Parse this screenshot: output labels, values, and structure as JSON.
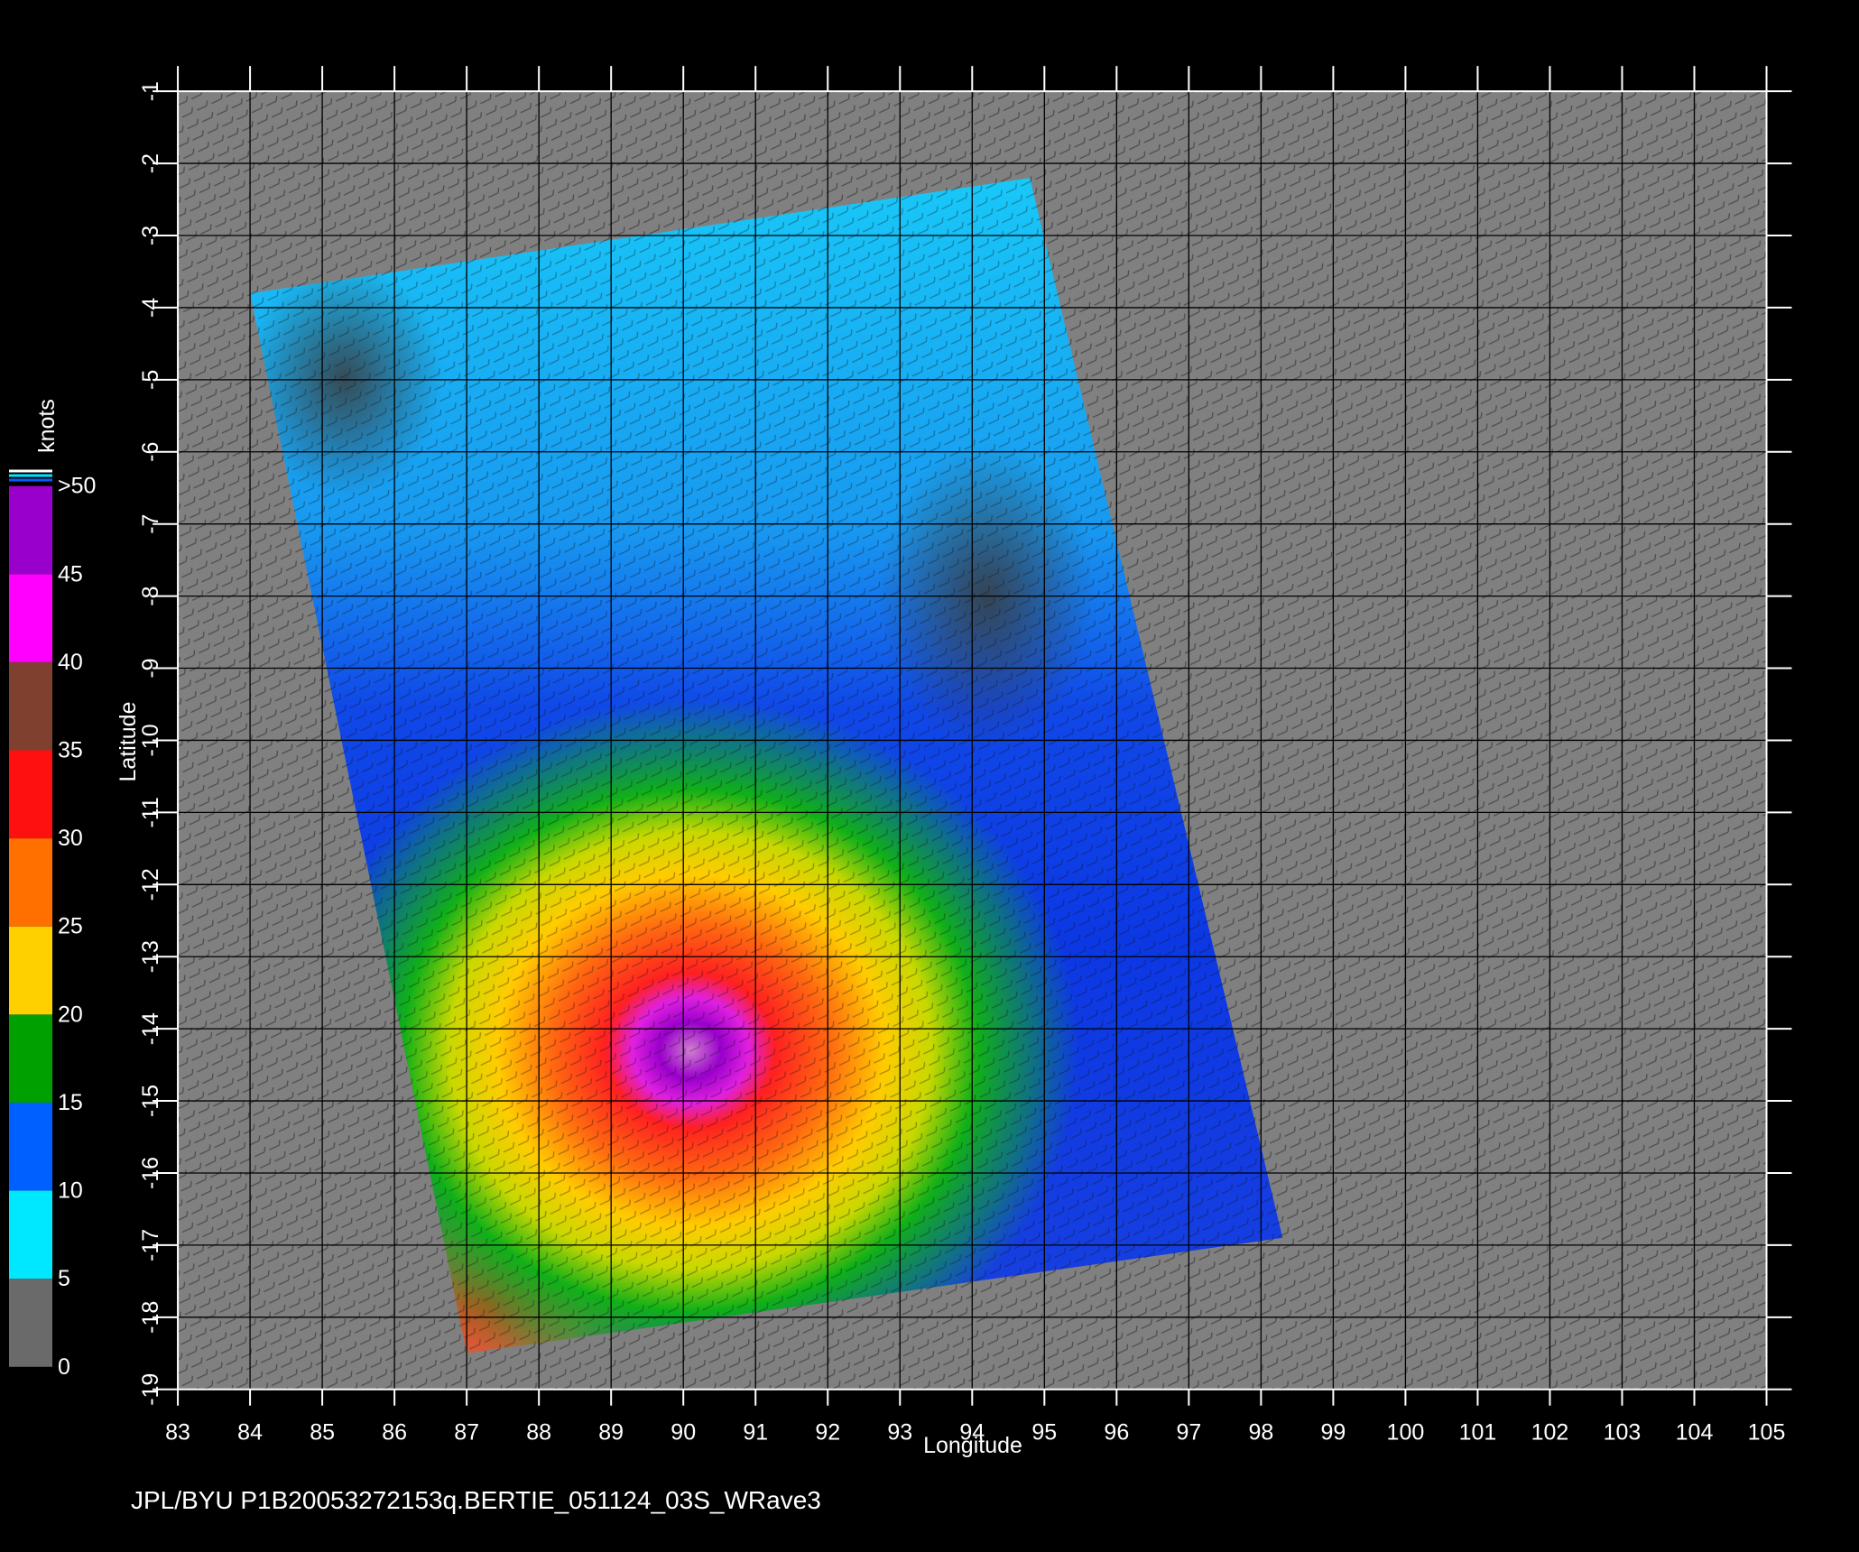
{
  "chart_data": {
    "type": "map",
    "xlabel": "Longitude",
    "ylabel": "Latitude",
    "xlim": [
      83,
      105
    ],
    "ylim": [
      -19,
      -1
    ],
    "xticks": [
      83,
      84,
      85,
      86,
      87,
      88,
      89,
      90,
      91,
      92,
      93,
      94,
      95,
      96,
      97,
      98,
      99,
      100,
      101,
      102,
      103,
      104,
      105
    ],
    "yticks": [
      -1,
      -2,
      -3,
      -4,
      -5,
      -6,
      -7,
      -8,
      -9,
      -10,
      -11,
      -12,
      -13,
      -14,
      -15,
      -16,
      -17,
      -18,
      -19
    ],
    "grid": true,
    "colorbar": {
      "label": "knots",
      "ticks": [
        0,
        5,
        10,
        15,
        20,
        25,
        30,
        35,
        40,
        45,
        {
          "value": 50,
          "label": ">50"
        }
      ],
      "colors": [
        "#6a6a6a",
        "#00e8ff",
        "#0060ff",
        "#00a000",
        "#ffd000",
        "#ff7000",
        "#ff1010",
        "#804030",
        "#ff00ff",
        "#9900cc"
      ]
    },
    "footer": "JPL/BYU  P1B20053272153q.BERTIE_051124_03S_WRave3"
  }
}
